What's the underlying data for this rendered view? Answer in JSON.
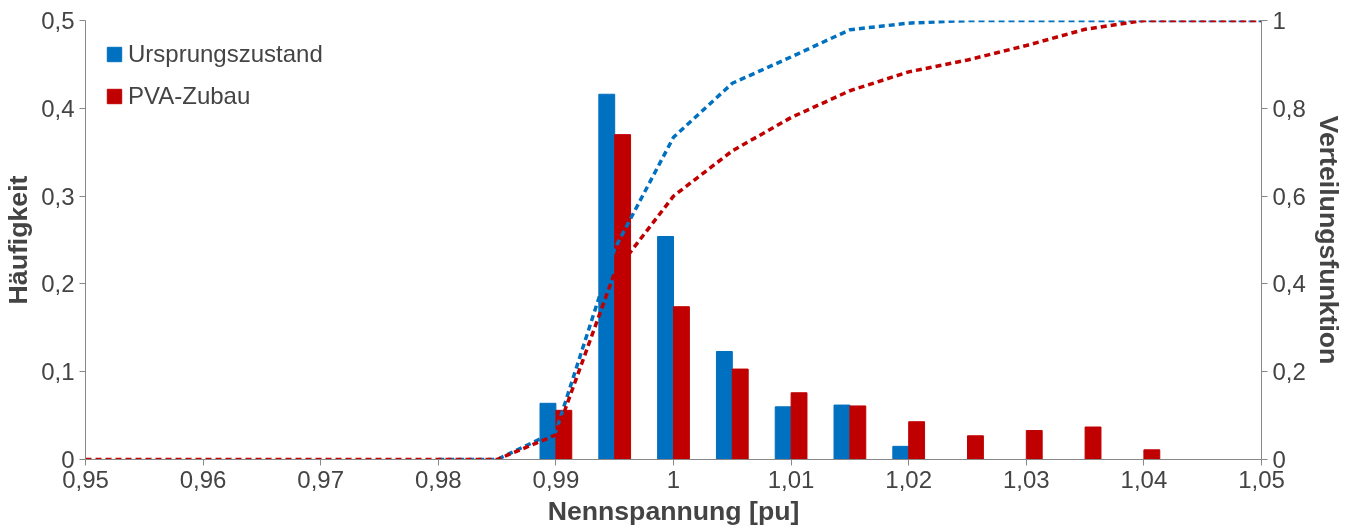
{
  "chart_data": {
    "type": "bar",
    "xlabel": "Nennspannung [pu]",
    "ylabel": "Häufigkeit",
    "y2label": "Verteilungsfunktion",
    "xlim": [
      0.95,
      1.05
    ],
    "xticks": [
      {
        "value": 0.95,
        "label": "0,95"
      },
      {
        "value": 0.96,
        "label": "0,96"
      },
      {
        "value": 0.97,
        "label": "0,97"
      },
      {
        "value": 0.98,
        "label": "0,98"
      },
      {
        "value": 0.99,
        "label": "0,99"
      },
      1,
      {
        "value": 1.01,
        "label": "1,01"
      },
      {
        "value": 1.02,
        "label": "1,02"
      },
      {
        "value": 1.03,
        "label": "1,03"
      },
      {
        "value": 1.04,
        "label": "1,04"
      },
      {
        "value": 1.05,
        "label": "1,05"
      }
    ],
    "ylim": [
      0,
      0.5
    ],
    "yticks": [
      0,
      {
        "value": 0.1,
        "label": "0,1"
      },
      {
        "value": 0.2,
        "label": "0,2"
      },
      {
        "value": 0.3,
        "label": "0,3"
      },
      {
        "value": 0.4,
        "label": "0,4"
      },
      {
        "value": 0.5,
        "label": "0,5"
      }
    ],
    "y2lim": [
      0,
      1
    ],
    "y2ticks": [
      0,
      {
        "value": 0.2,
        "label": "0,2"
      },
      {
        "value": 0.4,
        "label": "0,4"
      },
      {
        "value": 0.6,
        "label": "0,6"
      },
      {
        "value": 0.8,
        "label": "0,8"
      },
      1
    ],
    "grid": false,
    "legend": "top left",
    "series": [
      {
        "name": "Ursprungszustand",
        "color": "#0070c0",
        "x": [
          0.99,
          0.995,
          1.0,
          1.005,
          1.01,
          1.015,
          1.02
        ],
        "values": [
          0.064,
          0.416,
          0.254,
          0.123,
          0.06,
          0.062,
          0.015
        ]
      },
      {
        "name": "PVA-Zubau",
        "color": "#c00000",
        "x": [
          0.99,
          0.995,
          1.0,
          1.005,
          1.01,
          1.015,
          1.02,
          1.025,
          1.03,
          1.035,
          1.04
        ],
        "values": [
          0.056,
          0.37,
          0.174,
          0.103,
          0.076,
          0.061,
          0.043,
          0.027,
          0.033,
          0.037,
          0.011
        ]
      },
      {
        "type": "line",
        "axis": "y2",
        "line_style": "dashed",
        "color": "#0070c0",
        "x": [
          0.98,
          0.985,
          0.99,
          0.995,
          1.0,
          1.005,
          1.01,
          1.015,
          1.02,
          1.025,
          1.03,
          1.035,
          1.04,
          1.045,
          1.05
        ],
        "values": [
          0,
          0,
          0.064,
          0.48,
          0.734,
          0.857,
          0.917,
          0.979,
          0.994,
          1,
          1,
          1,
          1,
          1,
          1
        ]
      },
      {
        "type": "line",
        "axis": "y2",
        "line_style": "dashed",
        "color": "#c00000",
        "x": [
          0.95,
          0.955,
          0.96,
          0.965,
          0.97,
          0.975,
          0.98,
          0.985,
          0.99,
          0.995,
          1.0,
          1.005,
          1.01,
          1.015,
          1.02,
          1.025,
          1.03,
          1.035,
          1.04,
          1.045,
          1.05
        ],
        "values": [
          0,
          0,
          0,
          0,
          0,
          0,
          0,
          0,
          0.056,
          0.426,
          0.6,
          0.703,
          0.779,
          0.84,
          0.883,
          0.91,
          0.943,
          0.98,
          1,
          1,
          1
        ]
      }
    ]
  }
}
